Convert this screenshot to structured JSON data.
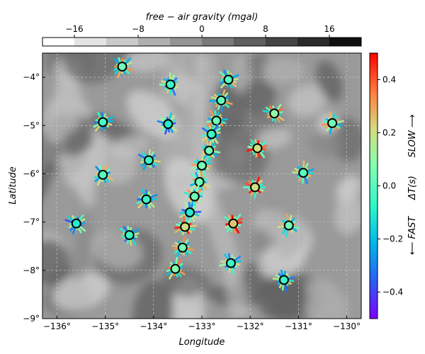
{
  "chart_data": {
    "type": "map",
    "title": "",
    "xlabel": "Longitude",
    "ylabel": "Latitude",
    "xlim": [
      -136.3,
      -129.7
    ],
    "ylim": [
      -9,
      -3.5
    ],
    "x_ticks": [
      {
        "value": -136,
        "label": "−136°"
      },
      {
        "value": -135,
        "label": "−135°"
      },
      {
        "value": -134,
        "label": "−134°"
      },
      {
        "value": -133,
        "label": "−133°"
      },
      {
        "value": -132,
        "label": "−132°"
      },
      {
        "value": -131,
        "label": "−131°"
      },
      {
        "value": -130,
        "label": "−130°"
      }
    ],
    "y_ticks": [
      {
        "value": -4,
        "label": "−4°"
      },
      {
        "value": -5,
        "label": "−5°"
      },
      {
        "value": -6,
        "label": "−6°"
      },
      {
        "value": -7,
        "label": "−7°"
      },
      {
        "value": -8,
        "label": "−8°"
      },
      {
        "value": -9,
        "label": "−9°"
      }
    ],
    "grid": true,
    "background": {
      "label": "free − air gravity (mgal)",
      "range": [
        -20,
        20
      ],
      "ticks": [
        {
          "value": -16,
          "label": "−16"
        },
        {
          "value": -8,
          "label": "−8"
        },
        {
          "value": 0,
          "label": "0"
        },
        {
          "value": 8,
          "label": "8"
        },
        {
          "value": 16,
          "label": "16"
        }
      ]
    },
    "colorbar": {
      "label": "ΔT(s)",
      "range": [
        -0.5,
        0.5
      ],
      "ticks": [
        {
          "value": 0.4,
          "label": "0.4"
        },
        {
          "value": 0.2,
          "label": "0.2"
        },
        {
          "value": 0.0,
          "label": "0.0"
        },
        {
          "value": -0.2,
          "label": "−0.2"
        },
        {
          "value": -0.4,
          "label": "−0.4"
        }
      ],
      "top_label": "SLOW ⟶",
      "bottom_label": "⟵ FAST"
    },
    "stations": [
      {
        "lon": -134.65,
        "lat": -3.78,
        "dt": 0.05
      },
      {
        "lon": -133.65,
        "lat": -4.15,
        "dt": -0.05
      },
      {
        "lon": -132.45,
        "lat": -4.05,
        "dt": 0.0
      },
      {
        "lon": -132.6,
        "lat": -4.48,
        "dt": 0.02
      },
      {
        "lon": -135.05,
        "lat": -4.93,
        "dt": -0.02
      },
      {
        "lon": -133.7,
        "lat": -4.97,
        "dt": -0.1
      },
      {
        "lon": -132.7,
        "lat": -4.9,
        "dt": 0.05
      },
      {
        "lon": -131.5,
        "lat": -4.75,
        "dt": 0.1
      },
      {
        "lon": -130.3,
        "lat": -4.95,
        "dt": 0.05
      },
      {
        "lon": -132.8,
        "lat": -5.18,
        "dt": -0.05
      },
      {
        "lon": -132.85,
        "lat": -5.52,
        "dt": 0.05
      },
      {
        "lon": -131.85,
        "lat": -5.47,
        "dt": 0.2
      },
      {
        "lon": -134.1,
        "lat": -5.72,
        "dt": -0.05
      },
      {
        "lon": -133.0,
        "lat": -5.83,
        "dt": 0.05
      },
      {
        "lon": -135.05,
        "lat": -6.02,
        "dt": 0.0
      },
      {
        "lon": -130.9,
        "lat": -5.98,
        "dt": 0.0
      },
      {
        "lon": -133.05,
        "lat": -6.17,
        "dt": 0.05
      },
      {
        "lon": -131.9,
        "lat": -6.28,
        "dt": 0.2
      },
      {
        "lon": -134.15,
        "lat": -6.53,
        "dt": -0.05
      },
      {
        "lon": -133.15,
        "lat": -6.47,
        "dt": 0.05
      },
      {
        "lon": -133.25,
        "lat": -6.8,
        "dt": -0.1
      },
      {
        "lon": -135.6,
        "lat": -7.03,
        "dt": -0.1
      },
      {
        "lon": -133.35,
        "lat": -7.1,
        "dt": 0.2
      },
      {
        "lon": -132.35,
        "lat": -7.03,
        "dt": 0.25
      },
      {
        "lon": -131.2,
        "lat": -7.07,
        "dt": 0.05
      },
      {
        "lon": -134.5,
        "lat": -7.27,
        "dt": -0.05
      },
      {
        "lon": -133.4,
        "lat": -7.53,
        "dt": 0.05
      },
      {
        "lon": -132.4,
        "lat": -7.85,
        "dt": -0.05
      },
      {
        "lon": -133.55,
        "lat": -7.97,
        "dt": 0.08
      },
      {
        "lon": -131.3,
        "lat": -8.2,
        "dt": -0.05
      }
    ]
  }
}
